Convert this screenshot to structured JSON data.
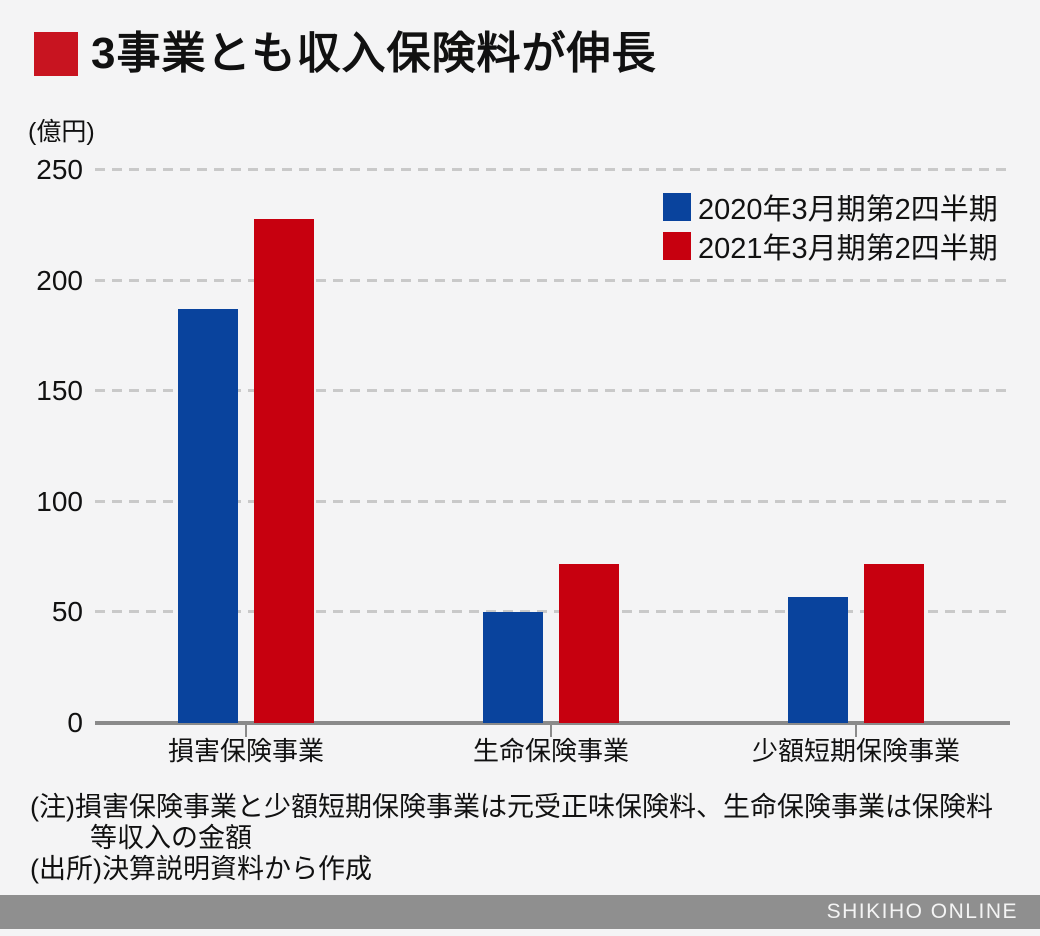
{
  "title": "3事業とも収入保険料が伸長",
  "unit_label": "(億円)",
  "colors": {
    "background": "#f4f4f5",
    "accent_red": "#c81420",
    "bar_blue": "#09439d",
    "bar_red": "#c7000f",
    "gridline": "#c9c9c9",
    "axis": "#8a8a8a",
    "brand_bar_bg": "#8f8f8f"
  },
  "legend": [
    {
      "label": "2020年3月期第2四半期",
      "color": "#09439d"
    },
    {
      "label": "2021年3月期第2四半期",
      "color": "#c7000f"
    }
  ],
  "notes": {
    "line1": "(注)損害保険事業と少額短期保険事業は元受正味保険料、生命保険事業は保険料",
    "line2": "等収入の金額",
    "line3": "(出所)決算説明資料から作成"
  },
  "footer_brand": "SHIKIHO ONLINE",
  "chart_data": {
    "type": "bar",
    "title": "3事業とも収入保険料が伸長",
    "ylabel": "(億円)",
    "categories": [
      "損害保険事業",
      "生命保険事業",
      "少額短期保険事業"
    ],
    "series": [
      {
        "name": "2020年3月期第2四半期",
        "color": "#09439d",
        "values": [
          187,
          50,
          57
        ]
      },
      {
        "name": "2021年3月期第2四半期",
        "color": "#c7000f",
        "values": [
          228,
          72,
          72
        ]
      }
    ],
    "ylim": [
      0,
      250
    ],
    "yticks": [
      0,
      50,
      100,
      150,
      200,
      250
    ],
    "grid": "dashed-horizontal",
    "legend_position": "top-right"
  }
}
